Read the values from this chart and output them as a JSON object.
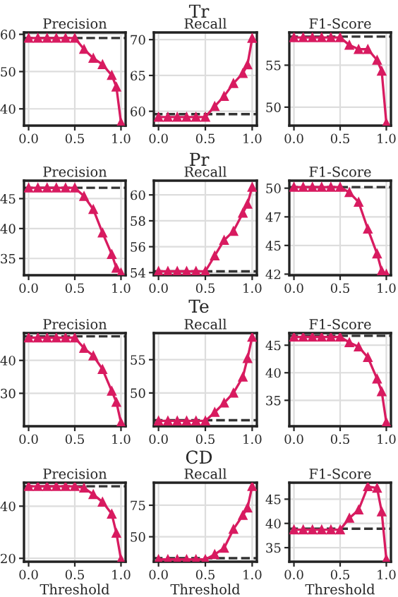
{
  "chart_data": [
    {
      "type": "other",
      "title": "Tr"
    },
    {
      "type": "line",
      "title": "Precision",
      "x": [
        0,
        0.1,
        0.2,
        0.3,
        0.4,
        0.5,
        0.6,
        0.7,
        0.8,
        0.9,
        0.95,
        1.0
      ],
      "series": [
        {
          "color": "#d81b60",
          "values": [
            59,
            59,
            59,
            59,
            59,
            59,
            56,
            53.6,
            51.9,
            49,
            45.9,
            36.3
          ]
        }
      ],
      "ref_lines": [
        {
          "axis": "y",
          "value": 59,
          "color": "#333333",
          "line_style": "dashed"
        }
      ],
      "xlim": [
        -0.05,
        1.05
      ],
      "xticks": [
        {
          "value": 0,
          "label": "0.0"
        },
        {
          "value": 0.5,
          "label": "0.5"
        },
        {
          "value": 1,
          "label": "1.0"
        }
      ],
      "ylim": [
        35.5,
        60.5
      ],
      "yticks": [
        40,
        50,
        60
      ],
      "grid": true,
      "marker": "triangle",
      "line_style": "solid"
    },
    {
      "type": "line",
      "title": "Recall",
      "x": [
        0,
        0.1,
        0.2,
        0.3,
        0.4,
        0.5,
        0.6,
        0.7,
        0.8,
        0.9,
        0.95,
        1.0
      ],
      "series": [
        {
          "color": "#d81b60",
          "values": [
            59.2,
            59.2,
            59.2,
            59.2,
            59.2,
            59.2,
            60.7,
            62.1,
            63.9,
            65.3,
            66.5,
            70.2
          ]
        }
      ],
      "ref_lines": [
        {
          "axis": "y",
          "value": 59.6,
          "color": "#333333",
          "line_style": "dashed"
        }
      ],
      "xlim": [
        -0.05,
        1.05
      ],
      "xticks": [
        {
          "value": 0,
          "label": "0.0"
        },
        {
          "value": 0.5,
          "label": "0.5"
        },
        {
          "value": 1,
          "label": "1.0"
        }
      ],
      "ylim": [
        58,
        71
      ],
      "yticks": [
        60,
        65,
        70
      ],
      "grid": true,
      "marker": "triangle",
      "line_style": "solid"
    },
    {
      "type": "line",
      "title": "F1-Score",
      "x": [
        0,
        0.1,
        0.2,
        0.3,
        0.4,
        0.5,
        0.6,
        0.7,
        0.8,
        0.9,
        0.95,
        1.0
      ],
      "series": [
        {
          "color": "#d81b60",
          "values": [
            58.3,
            58.3,
            58.3,
            58.3,
            58.3,
            58.3,
            57.4,
            56.9,
            56.9,
            55.6,
            54.3,
            48.1
          ]
        }
      ],
      "ref_lines": [
        {
          "axis": "y",
          "value": 58.4,
          "color": "#333333",
          "line_style": "dashed"
        }
      ],
      "xlim": [
        -0.05,
        1.05
      ],
      "xticks": [
        {
          "value": 0,
          "label": "0.0"
        },
        {
          "value": 0.5,
          "label": "0.5"
        },
        {
          "value": 1,
          "label": "1.0"
        }
      ],
      "ylim": [
        47.8,
        58.9
      ],
      "yticks": [
        50,
        55
      ],
      "grid": true,
      "marker": "triangle",
      "line_style": "solid"
    },
    {
      "type": "other",
      "title": "Pr"
    },
    {
      "type": "line",
      "title": "Precision",
      "x": [
        0,
        0.1,
        0.2,
        0.3,
        0.4,
        0.5,
        0.6,
        0.7,
        0.8,
        0.9,
        0.95,
        1.0
      ],
      "series": [
        {
          "color": "#d81b60",
          "values": [
            46.8,
            46.8,
            46.8,
            46.8,
            46.8,
            46.8,
            45.4,
            43.2,
            39.3,
            35.7,
            33.4,
            32.6
          ]
        }
      ],
      "ref_lines": [
        {
          "axis": "y",
          "value": 46.8,
          "color": "#333333",
          "line_style": "dashed"
        }
      ],
      "xlim": [
        -0.05,
        1.05
      ],
      "xticks": [
        {
          "value": 0,
          "label": "0.0"
        },
        {
          "value": 0.5,
          "label": "0.5"
        },
        {
          "value": 1,
          "label": "1.0"
        }
      ],
      "ylim": [
        32.2,
        48
      ],
      "yticks": [
        35,
        40,
        45
      ],
      "grid": true,
      "marker": "triangle",
      "line_style": "solid"
    },
    {
      "type": "line",
      "title": "Recall",
      "x": [
        0,
        0.1,
        0.2,
        0.3,
        0.4,
        0.5,
        0.6,
        0.7,
        0.8,
        0.9,
        0.95,
        1.0
      ],
      "series": [
        {
          "color": "#d81b60",
          "values": [
            54.1,
            54.1,
            54.1,
            54.1,
            54.1,
            54.1,
            55.3,
            56.5,
            57.2,
            58.6,
            59.3,
            60.6
          ]
        }
      ],
      "ref_lines": [
        {
          "axis": "y",
          "value": 54.1,
          "color": "#333333",
          "line_style": "dashed"
        }
      ],
      "xlim": [
        -0.05,
        1.05
      ],
      "xticks": [
        {
          "value": 0,
          "label": "0.0"
        },
        {
          "value": 0.5,
          "label": "0.5"
        },
        {
          "value": 1,
          "label": "1.0"
        }
      ],
      "ylim": [
        53.8,
        61.1
      ],
      "yticks": [
        54,
        56,
        58,
        60
      ],
      "grid": true,
      "marker": "triangle",
      "line_style": "solid"
    },
    {
      "type": "line",
      "title": "F1-Score",
      "x": [
        0,
        0.1,
        0.2,
        0.3,
        0.4,
        0.5,
        0.6,
        0.7,
        0.8,
        0.9,
        0.95,
        1.0
      ],
      "series": [
        {
          "color": "#d81b60",
          "values": [
            50.1,
            50.1,
            50.1,
            50.1,
            50.1,
            50.1,
            49.6,
            48.7,
            46.2,
            43.9,
            42.3,
            42.0
          ]
        }
      ],
      "ref_lines": [
        {
          "axis": "y",
          "value": 50.1,
          "color": "#333333",
          "line_style": "dashed"
        }
      ],
      "xlim": [
        -0.05,
        1.05
      ],
      "xticks": [
        {
          "value": 0,
          "label": "0.0"
        },
        {
          "value": 0.5,
          "label": "0.5"
        },
        {
          "value": 1,
          "label": "1.0"
        }
      ],
      "ylim": [
        41.9,
        50.7
      ],
      "yticks": [
        {
          "value": 42,
          "label": "42"
        },
        {
          "value": 44.67,
          "label": "45"
        },
        {
          "value": 47.33,
          "label": "47"
        },
        {
          "value": 50,
          "label": "50"
        }
      ],
      "grid": true,
      "marker": "triangle",
      "line_style": "solid"
    },
    {
      "type": "other",
      "title": "Te"
    },
    {
      "type": "line",
      "title": "Precision",
      "x": [
        0,
        0.1,
        0.2,
        0.3,
        0.4,
        0.5,
        0.6,
        0.7,
        0.8,
        0.9,
        0.95,
        1.0
      ],
      "series": [
        {
          "color": "#d81b60",
          "values": [
            46.9,
            46.9,
            46.9,
            46.9,
            46.9,
            46.9,
            43.7,
            41.4,
            37.3,
            30.7,
            27.3,
            21.1
          ]
        }
      ],
      "ref_lines": [
        {
          "axis": "y",
          "value": 47.3,
          "color": "#333333",
          "line_style": "dashed"
        }
      ],
      "xlim": [
        -0.05,
        1.05
      ],
      "xticks": [
        {
          "value": 0,
          "label": "0.0"
        },
        {
          "value": 0.5,
          "label": "0.5"
        },
        {
          "value": 1,
          "label": "1.0"
        }
      ],
      "ylim": [
        20,
        48.3
      ],
      "yticks": [
        30,
        40
      ],
      "grid": true,
      "marker": "triangle",
      "line_style": "solid"
    },
    {
      "type": "line",
      "title": "Recall",
      "x": [
        0,
        0.1,
        0.2,
        0.3,
        0.4,
        0.5,
        0.6,
        0.7,
        0.8,
        0.9,
        0.95,
        1.0
      ],
      "series": [
        {
          "color": "#d81b60",
          "values": [
            45.8,
            45.8,
            45.8,
            45.8,
            45.8,
            45.8,
            47.1,
            48.5,
            50,
            52.4,
            55.2,
            58.4
          ]
        }
      ],
      "ref_lines": [
        {
          "axis": "y",
          "value": 45.9,
          "color": "#333333",
          "line_style": "dashed"
        }
      ],
      "xlim": [
        -0.05,
        1.05
      ],
      "xticks": [
        {
          "value": 0,
          "label": "0.0"
        },
        {
          "value": 0.5,
          "label": "0.5"
        },
        {
          "value": 1,
          "label": "1.0"
        }
      ],
      "ylim": [
        45,
        59
      ],
      "yticks": [
        50,
        55
      ],
      "grid": true,
      "marker": "triangle",
      "line_style": "solid"
    },
    {
      "type": "line",
      "title": "F1-Score",
      "x": [
        0,
        0.1,
        0.2,
        0.3,
        0.4,
        0.5,
        0.6,
        0.7,
        0.8,
        0.9,
        0.95,
        1.0
      ],
      "series": [
        {
          "color": "#d81b60",
          "values": [
            46.5,
            46.5,
            46.5,
            46.5,
            46.5,
            46.5,
            45.5,
            44.7,
            42.8,
            38.9,
            36.6,
            31.0
          ]
        }
      ],
      "ref_lines": [
        {
          "axis": "y",
          "value": 46.7,
          "color": "#333333",
          "line_style": "dashed"
        }
      ],
      "xlim": [
        -0.05,
        1.05
      ],
      "xticks": [
        {
          "value": 0,
          "label": "0.0"
        },
        {
          "value": 0.5,
          "label": "0.5"
        },
        {
          "value": 1,
          "label": "1.0"
        }
      ],
      "ylim": [
        30.3,
        47.2
      ],
      "yticks": [
        35,
        40,
        45
      ],
      "grid": true,
      "marker": "triangle",
      "line_style": "solid"
    },
    {
      "type": "other",
      "title": "CD"
    },
    {
      "type": "line",
      "title": "Precision",
      "xlabel": "Threshold",
      "x": [
        0,
        0.1,
        0.2,
        0.3,
        0.4,
        0.5,
        0.6,
        0.7,
        0.8,
        0.9,
        0.95,
        1.0
      ],
      "series": [
        {
          "color": "#d81b60",
          "values": [
            47.6,
            47.6,
            47.6,
            47.6,
            47.6,
            47.6,
            47.0,
            44.5,
            41.6,
            37,
            29.7,
            19.6
          ]
        }
      ],
      "ref_lines": [
        {
          "axis": "y",
          "value": 47.6,
          "color": "#333333",
          "line_style": "dashed"
        }
      ],
      "xlim": [
        -0.05,
        1.05
      ],
      "xticks": [
        {
          "value": 0,
          "label": "0.0"
        },
        {
          "value": 0.5,
          "label": "0.5"
        },
        {
          "value": 1,
          "label": "1.0"
        }
      ],
      "ylim": [
        18.7,
        49
      ],
      "yticks": [
        20,
        40
      ],
      "grid": true,
      "marker": "triangle",
      "line_style": "solid"
    },
    {
      "type": "line",
      "title": "Recall",
      "xlabel": "Threshold",
      "x": [
        0,
        0.1,
        0.2,
        0.3,
        0.4,
        0.5,
        0.6,
        0.7,
        0.8,
        0.9,
        0.95,
        1.0
      ],
      "series": [
        {
          "color": "#d81b60",
          "values": [
            32,
            32,
            32,
            32,
            32,
            32,
            36,
            41,
            56,
            67,
            73,
            90
          ]
        }
      ],
      "ref_lines": [
        {
          "axis": "y",
          "value": 33,
          "color": "#333333",
          "line_style": "dashed"
        }
      ],
      "xlim": [
        -0.05,
        1.05
      ],
      "xticks": [
        {
          "value": 0,
          "label": "0.0"
        },
        {
          "value": 0.5,
          "label": "0.5"
        },
        {
          "value": 1,
          "label": "1.0"
        }
      ],
      "ylim": [
        30.2,
        92.9
      ],
      "yticks": [
        50,
        75
      ],
      "grid": true,
      "marker": "triangle",
      "line_style": "solid"
    },
    {
      "type": "line",
      "title": "F1-Score",
      "xlabel": "Threshold",
      "x": [
        0,
        0.1,
        0.2,
        0.3,
        0.4,
        0.5,
        0.6,
        0.7,
        0.8,
        0.9,
        0.95,
        1.0
      ],
      "series": [
        {
          "color": "#d81b60",
          "values": [
            38.7,
            38.7,
            38.7,
            38.7,
            38.7,
            38.7,
            41.1,
            42.8,
            47.6,
            47.3,
            42.4,
            32.6
          ]
        }
      ],
      "ref_lines": [
        {
          "axis": "y",
          "value": 38.9,
          "color": "#333333",
          "line_style": "dashed"
        }
      ],
      "xlim": [
        -0.05,
        1.05
      ],
      "xticks": [
        {
          "value": 0,
          "label": "0.0"
        },
        {
          "value": 0.5,
          "label": "0.5"
        },
        {
          "value": 1,
          "label": "1.0"
        }
      ],
      "ylim": [
        32.1,
        48.4
      ],
      "yticks": [
        35,
        40,
        45
      ],
      "grid": true,
      "marker": "triangle",
      "line_style": "solid"
    }
  ]
}
